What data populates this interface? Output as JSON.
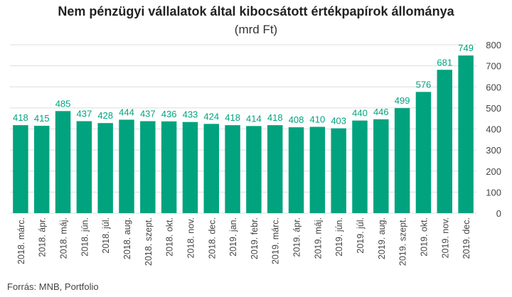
{
  "title": "Nem pénzügyi vállalatok által kibocsátott értékpapírok állománya",
  "subtitle": "(mrd Ft)",
  "source": "Forrás: MNB, Portfolio",
  "colors": {
    "bar": "#00a37e",
    "label": "#00a37e",
    "grid": "#dddddd",
    "axis_text": "#444444"
  },
  "chart_data": {
    "type": "bar",
    "categories": [
      "2018. márc.",
      "2018. ápr.",
      "2018. máj.",
      "2018. jún.",
      "2018. júl.",
      "2018. aug.",
      "2018. szept.",
      "2018. okt.",
      "2018. nov.",
      "2018. dec.",
      "2019. jan.",
      "2019. febr.",
      "2019. márc.",
      "2019. ápr.",
      "2019. máj.",
      "2019. jún.",
      "2019. júl.",
      "2019. aug.",
      "2019. szept.",
      "2019. okt.",
      "2019. nov.",
      "2019. dec."
    ],
    "values": [
      418,
      415,
      485,
      437,
      428,
      444,
      437,
      436,
      433,
      424,
      418,
      414,
      418,
      408,
      410,
      403,
      440,
      446,
      499,
      576,
      681,
      749
    ],
    "ylim": [
      0,
      800
    ],
    "yticks": [
      0,
      100,
      200,
      300,
      400,
      500,
      600,
      700,
      800
    ],
    "y_axis_side": "right",
    "grid": true,
    "data_labels": true
  }
}
